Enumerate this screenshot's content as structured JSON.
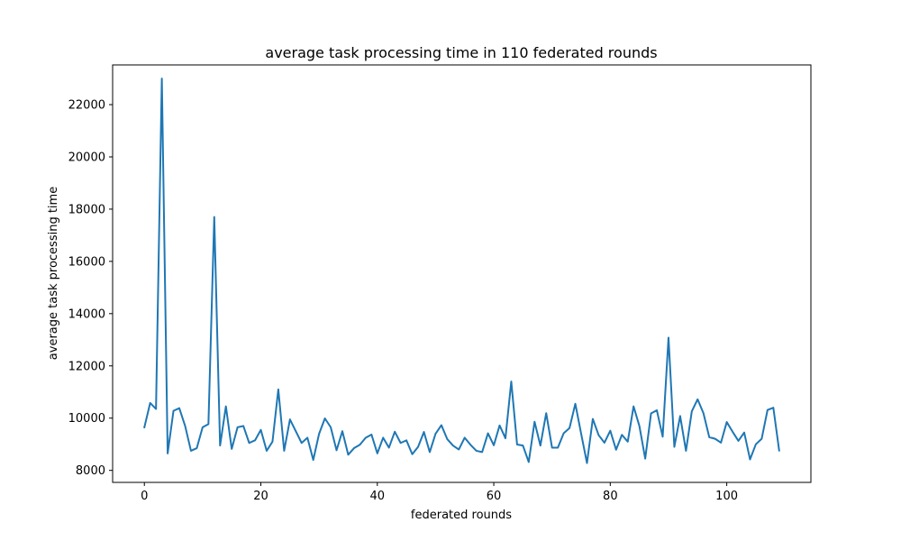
{
  "chart_data": {
    "type": "line",
    "title": "average task processing time in 110 federated rounds",
    "xlabel": "federated rounds",
    "ylabel": "average task processing time",
    "x_ticks": [
      0,
      20,
      40,
      60,
      80,
      100
    ],
    "y_ticks": [
      8000,
      10000,
      12000,
      14000,
      16000,
      18000,
      20000,
      22000
    ],
    "xlim": [
      -5.45,
      114.45
    ],
    "ylim": [
      7540,
      23520
    ],
    "grid": false,
    "legend": "none",
    "series": [
      {
        "color": "#1f77b4",
        "x": [
          0,
          1,
          2,
          3,
          4,
          5,
          6,
          7,
          8,
          9,
          10,
          11,
          12,
          13,
          14,
          15,
          16,
          17,
          18,
          19,
          20,
          21,
          22,
          23,
          24,
          25,
          26,
          27,
          28,
          29,
          30,
          31,
          32,
          33,
          34,
          35,
          36,
          37,
          38,
          39,
          40,
          41,
          42,
          43,
          44,
          45,
          46,
          47,
          48,
          49,
          50,
          51,
          52,
          53,
          54,
          55,
          56,
          57,
          58,
          59,
          60,
          61,
          62,
          63,
          64,
          65,
          66,
          67,
          68,
          69,
          70,
          71,
          72,
          73,
          74,
          75,
          76,
          77,
          78,
          79,
          80,
          81,
          82,
          83,
          84,
          85,
          86,
          87,
          88,
          89,
          90,
          91,
          92,
          93,
          94,
          95,
          96,
          97,
          98,
          99,
          100,
          101,
          102,
          103,
          104,
          105,
          106,
          107,
          108,
          109
        ],
        "values": [
          9650,
          10580,
          10350,
          23000,
          8650,
          10280,
          10380,
          9700,
          8750,
          8850,
          9650,
          9770,
          17700,
          8950,
          10450,
          8820,
          9650,
          9700,
          9050,
          9150,
          9550,
          8750,
          9100,
          11100,
          8750,
          9950,
          9500,
          9050,
          9250,
          8400,
          9400,
          9990,
          9650,
          8770,
          9500,
          8600,
          8850,
          8980,
          9250,
          9370,
          8650,
          9250,
          8870,
          9480,
          9050,
          9150,
          8620,
          8900,
          9470,
          8700,
          9400,
          9730,
          9200,
          8950,
          8800,
          9250,
          8980,
          8750,
          8700,
          9420,
          8960,
          9720,
          9230,
          11400,
          8990,
          8950,
          8320,
          9860,
          8950,
          10190,
          8870,
          8870,
          9420,
          9620,
          10550,
          9400,
          8280,
          9970,
          9350,
          9060,
          9520,
          8790,
          9360,
          9100,
          10450,
          9700,
          8450,
          10180,
          10300,
          9290,
          13080,
          8900,
          10080,
          8750,
          10260,
          10720,
          10190,
          9270,
          9210,
          9060,
          9850,
          9480,
          9130,
          9450,
          8420,
          9000,
          9210,
          10310,
          10400,
          8760
        ]
      }
    ]
  }
}
